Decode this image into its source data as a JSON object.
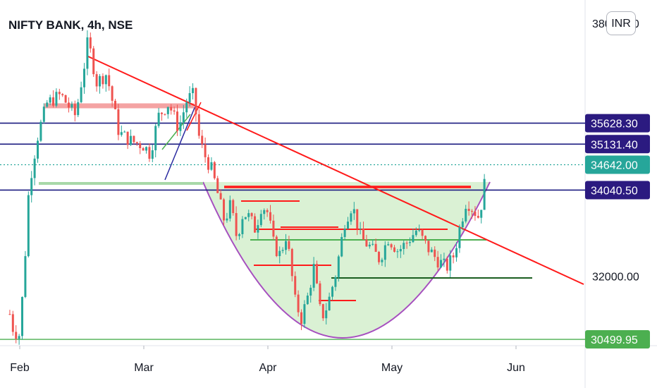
{
  "header": {
    "title": "NIFTY BANK, 4h, NSE",
    "currency": "INR"
  },
  "colors": {
    "up": "#26a69a",
    "down": "#ef5350",
    "trendline": "#ff1a1a",
    "cup": "#a64fbf",
    "cup_fill": "#d6efcf",
    "navy": "#1a1a80",
    "green_line": "#4caf50",
    "dark_green": "#1b5e20",
    "badge_navy": "#2b1a80",
    "badge_green": "#26a69a",
    "badge_green_light": "#4caf50"
  },
  "chart_data": {
    "type": "candlestick",
    "title": "NIFTY BANK, 4h, NSE",
    "y_axis": {
      "min": 30350,
      "max": 38550,
      "ticks": [
        32000,
        38000
      ]
    },
    "x_axis": {
      "labels": [
        "Feb",
        "Mar",
        "Apr",
        "May",
        "Jun"
      ],
      "months_index": [
        0,
        1,
        2,
        3,
        4
      ]
    },
    "price_badges": [
      {
        "value": 35628.3,
        "label": "35628.30",
        "style": "navy"
      },
      {
        "value": 35131.4,
        "label": "35131.40",
        "style": "navy"
      },
      {
        "value": 34642.0,
        "label": "34642.00",
        "style": "green"
      },
      {
        "value": 34040.5,
        "label": "34040.50",
        "style": "navy"
      },
      {
        "value": 30499.95,
        "label": "30499.95",
        "style": "green_light"
      }
    ],
    "horizontal_levels": [
      {
        "value": 35628.3,
        "style": "navy"
      },
      {
        "value": 35131.4,
        "style": "navy"
      },
      {
        "value": 34040.5,
        "style": "navy"
      },
      {
        "value": 34642.0,
        "style": "dotted"
      },
      {
        "value": 30499.95,
        "style": "green"
      }
    ],
    "price_path": [
      [
        -0.08,
        31100
      ],
      [
        -0.05,
        30700
      ],
      [
        0.0,
        30600
      ],
      [
        0.04,
        32300
      ],
      [
        0.07,
        33900
      ],
      [
        0.1,
        34600
      ],
      [
        0.15,
        35400
      ],
      [
        0.22,
        36100
      ],
      [
        0.33,
        36300
      ],
      [
        0.45,
        35800
      ],
      [
        0.52,
        37000
      ],
      [
        0.55,
        37600
      ],
      [
        0.62,
        36600
      ],
      [
        0.7,
        36800
      ],
      [
        0.8,
        35400
      ],
      [
        0.9,
        35200
      ],
      [
        1.0,
        35100
      ],
      [
        1.05,
        34900
      ],
      [
        1.12,
        35800
      ],
      [
        1.2,
        36100
      ],
      [
        1.28,
        35500
      ],
      [
        1.35,
        36200
      ],
      [
        1.4,
        36300
      ],
      [
        1.45,
        35200
      ],
      [
        1.5,
        34800
      ],
      [
        1.55,
        34500
      ],
      [
        1.6,
        33900
      ],
      [
        1.65,
        33300
      ],
      [
        1.7,
        33700
      ],
      [
        1.75,
        32900
      ],
      [
        1.8,
        33500
      ],
      [
        1.85,
        33400
      ],
      [
        1.9,
        33100
      ],
      [
        1.95,
        33700
      ],
      [
        2.0,
        33500
      ],
      [
        2.05,
        32700
      ],
      [
        2.1,
        32500
      ],
      [
        2.15,
        33000
      ],
      [
        2.22,
        31400
      ],
      [
        2.27,
        31000
      ],
      [
        2.32,
        31500
      ],
      [
        2.37,
        32200
      ],
      [
        2.43,
        31000
      ],
      [
        2.48,
        31300
      ],
      [
        2.55,
        32100
      ],
      [
        2.62,
        33300
      ],
      [
        2.68,
        33700
      ],
      [
        2.75,
        32900
      ],
      [
        2.82,
        32700
      ],
      [
        2.9,
        32400
      ],
      [
        2.97,
        32900
      ],
      [
        3.05,
        32600
      ],
      [
        3.12,
        32800
      ],
      [
        3.2,
        33100
      ],
      [
        3.28,
        32700
      ],
      [
        3.36,
        32400
      ],
      [
        3.44,
        32200
      ],
      [
        3.5,
        32500
      ],
      [
        3.55,
        33200
      ],
      [
        3.6,
        33800
      ],
      [
        3.65,
        33600
      ],
      [
        3.7,
        33400
      ],
      [
        3.74,
        34000
      ],
      [
        3.76,
        34700
      ]
    ]
  }
}
